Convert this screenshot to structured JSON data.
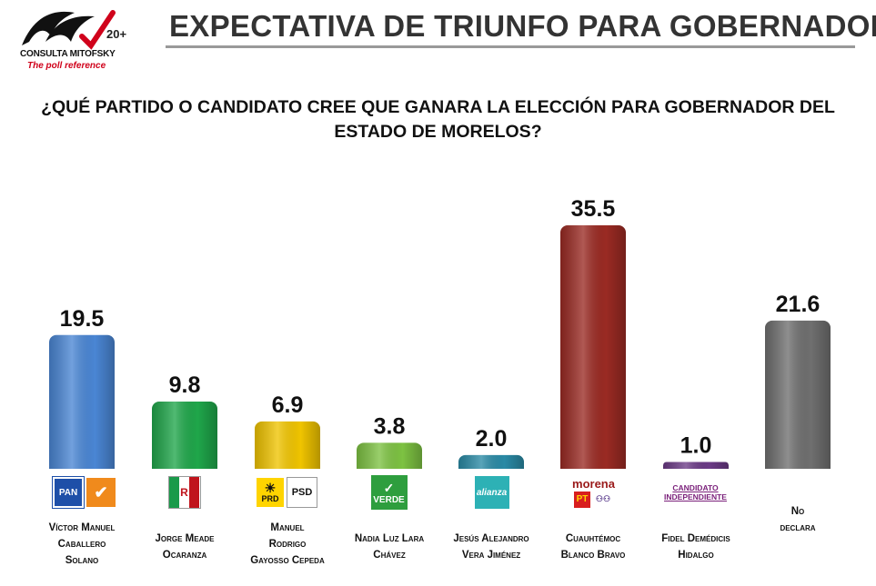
{
  "header": {
    "brand_name": "CONSULTA MITOFSKY",
    "brand_tagline": "The poll reference",
    "brand_years": "20+",
    "title": "EXPECTATIVA DE TRIUNFO PARA GOBERNADOR"
  },
  "question": "¿QUÉ PARTIDO O CANDIDATO CREE QUE GANARA LA ELECCIÓN PARA GOBERNADOR DEL ESTADO DE MORELOS?",
  "chart_data": {
    "type": "bar",
    "title": "EXPECTATIVA DE TRIUNFO PARA GOBERNADOR",
    "categories": [
      "Víctor Manuel Caballero Solano",
      "Jorge Meade Ocaranza",
      "Manuel Rodrigo Gayosso Cepeda",
      "Nadia Luz Lara Chávez",
      "Jesús Alejandro Vera Jiménez",
      "Cuauhtémoc Blanco Bravo",
      "Fidel Demédicis Hidalgo",
      "No declara"
    ],
    "values": [
      19.5,
      9.8,
      6.9,
      3.8,
      2.0,
      35.5,
      1.0,
      21.6
    ],
    "value_labels": [
      "19.5",
      "9.8",
      "6.9",
      "3.8",
      "2.0",
      "35.5",
      "1.0",
      "21.6"
    ],
    "colors": [
      "#4a86d4",
      "#1fa64a",
      "#f0c400",
      "#7dc242",
      "#2a8aa5",
      "#9a2a23",
      "#6b3a86",
      "#6f6f6f"
    ],
    "ylim": [
      0,
      35.5
    ],
    "grid": false,
    "legend": "none"
  },
  "candidates": [
    {
      "name_lines": [
        "Víctor Manuel",
        "Caballero",
        "Solano"
      ],
      "parties": [
        "PAN",
        "MC"
      ]
    },
    {
      "name_lines": [
        "Jorge Meade",
        "Ocaranza"
      ],
      "parties": [
        "PRI"
      ]
    },
    {
      "name_lines": [
        "Manuel",
        "Rodrigo",
        "Gayosso Cepeda"
      ],
      "parties": [
        "PRD",
        "PSD"
      ]
    },
    {
      "name_lines": [
        "Nadia Luz Lara",
        "Chávez"
      ],
      "parties": [
        "VERDE"
      ]
    },
    {
      "name_lines": [
        "Jesús Alejandro",
        "Vera Jiménez"
      ],
      "parties": [
        "alianza"
      ]
    },
    {
      "name_lines": [
        "Cuauhtémoc",
        "Blanco Bravo"
      ],
      "parties": [
        "morena",
        "PT",
        "PES"
      ]
    },
    {
      "name_lines": [
        "Fidel Demédicis",
        "Hidalgo"
      ],
      "parties": [
        "CANDIDATO INDEPENDIENTE"
      ]
    },
    {
      "name_lines": [
        "No",
        "declara"
      ],
      "parties": []
    }
  ],
  "party_logo_icons": [
    "pan-logo-icon",
    "mc-logo-icon",
    "pri-logo-icon",
    "prd-logo-icon",
    "psd-logo-icon",
    "verde-logo-icon",
    "nueva-alianza-logo-icon",
    "morena-logo-icon",
    "pt-logo-icon",
    "pes-logo-icon",
    "independiente-logo-icon"
  ]
}
